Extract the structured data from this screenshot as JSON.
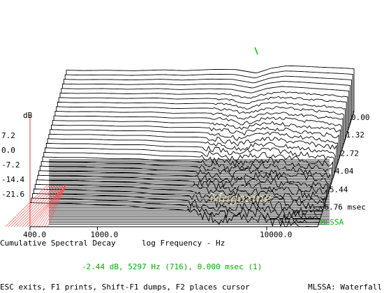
{
  "chart_data": {
    "type": "waterfall",
    "title": "Cumulative Spectral Decay",
    "xlabel": "log Frequency - Hz",
    "x_scale": "log",
    "x_range_hz": [
      400,
      20000
    ],
    "x_tick_labels": [
      "400.0",
      "1000.0",
      "10000.0"
    ],
    "x_ticks_hz": [
      400,
      1000,
      10000
    ],
    "y_unit": "dB",
    "y_tick_labels": [
      "7.2",
      "0.0",
      "-7.2",
      "-14.4",
      "-21.6"
    ],
    "y_ticks_db": [
      7.2,
      0.0,
      -7.2,
      -14.4,
      -21.6
    ],
    "y_range_db": [
      -28.8,
      14.4
    ],
    "time_tick_labels": [
      "0.00",
      "1.32",
      "2.72",
      "4.04",
      "5.44",
      "6.76 msec"
    ],
    "time_ticks_msec": [
      0.0,
      1.32,
      2.72,
      4.04,
      5.44,
      6.76
    ],
    "time_range_msec": [
      0.0,
      7.0
    ],
    "slice_count": 30,
    "front_slice_db": [
      {
        "hz": 400,
        "db": 14.0
      },
      {
        "hz": 500,
        "db": 13.6
      },
      {
        "hz": 700,
        "db": 13.9
      },
      {
        "hz": 1000,
        "db": 13.4
      },
      {
        "hz": 1500,
        "db": 14.3
      },
      {
        "hz": 2000,
        "db": 13.5
      },
      {
        "hz": 3000,
        "db": 14.8
      },
      {
        "hz": 4000,
        "db": 14.6
      },
      {
        "hz": 5297,
        "db": 11.0
      },
      {
        "hz": 6500,
        "db": 16.0
      },
      {
        "hz": 8000,
        "db": 18.5
      },
      {
        "hz": 10000,
        "db": 18.0
      },
      {
        "hz": 13000,
        "db": 17.0
      },
      {
        "hz": 16000,
        "db": 16.4
      },
      {
        "hz": 20000,
        "db": 15.5
      }
    ],
    "cursor": {
      "hz": 5297,
      "db": -2.44,
      "msec": 0.0
    },
    "watermark": "Magazine"
  },
  "screen": {
    "brand_label": "MLSSA",
    "cursor_readout": "-2.44 dB, 5297 Hz (716), 0.000 msec (1)",
    "help_line": "ESC exits, F1 prints, Shift-F1 dumps, F2 places cursor",
    "mode_label": "MLSSA: Waterfall"
  }
}
